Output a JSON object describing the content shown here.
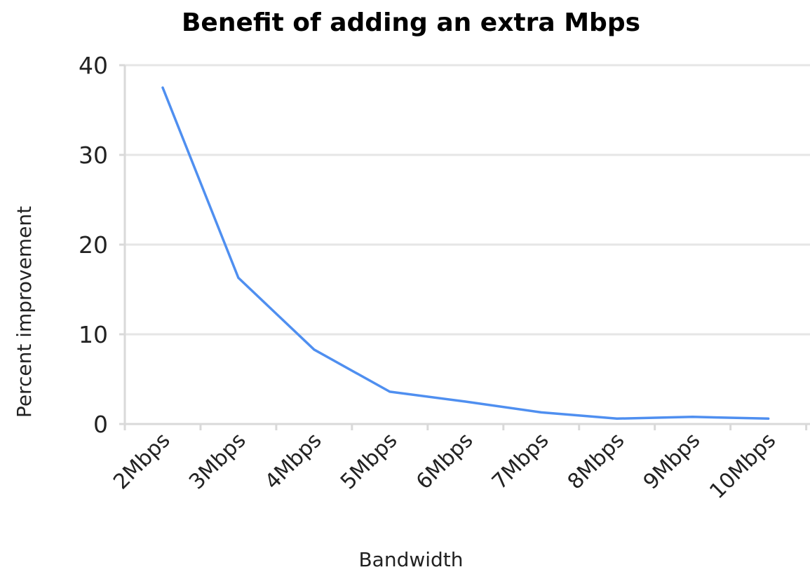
{
  "chart_data": {
    "type": "line",
    "title": "Benefit of adding an extra Mbps",
    "xlabel": "Bandwidth",
    "ylabel": "Percent improvement",
    "categories": [
      "2Mbps",
      "3Mbps",
      "4Mbps",
      "5Mbps",
      "6Mbps",
      "7Mbps",
      "8Mbps",
      "9Mbps",
      "10Mbps"
    ],
    "series": [
      {
        "values": [
          37.5,
          16.3,
          8.3,
          3.6,
          2.5,
          1.3,
          0.6,
          0.8,
          0.6
        ],
        "color": "#4f8ff0"
      }
    ],
    "yticks": [
      0,
      10,
      20,
      30,
      40
    ],
    "ylim": [
      0,
      40
    ],
    "grid": true,
    "legend": "none"
  }
}
